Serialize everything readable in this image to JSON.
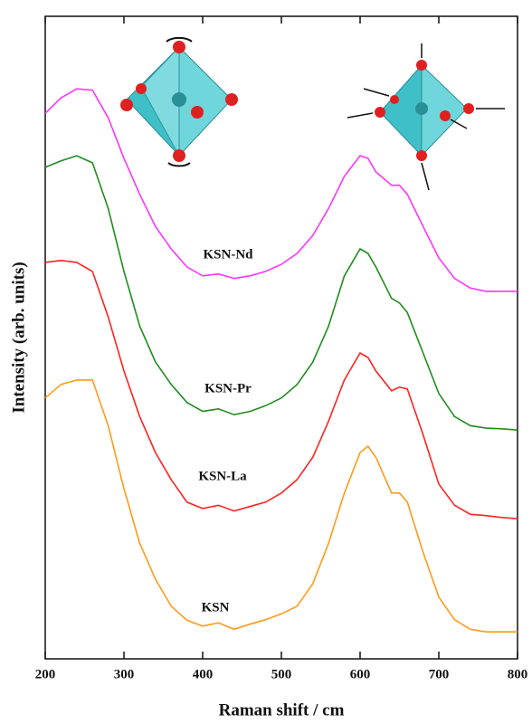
{
  "chart_data": {
    "type": "line",
    "xlabel": "Raman shift / cm",
    "ylabel": "Intensity (arb. units)",
    "xlim": [
      200,
      800
    ],
    "xticks": [
      200,
      300,
      400,
      500,
      600,
      700,
      800
    ],
    "ylim": [
      0,
      100
    ],
    "x": [
      200,
      220,
      240,
      260,
      280,
      300,
      320,
      340,
      360,
      380,
      400,
      420,
      440,
      460,
      480,
      500,
      520,
      540,
      560,
      580,
      600,
      610,
      620,
      640,
      650,
      660,
      680,
      700,
      720,
      740,
      760,
      780,
      800
    ],
    "series": [
      {
        "name": "KSN-Nd",
        "color": "#ff33ff",
        "values": [
          84.9,
          87.3,
          88.7,
          88.5,
          84.2,
          77.9,
          72.3,
          67.3,
          63.8,
          61.0,
          59.6,
          59.9,
          59.2,
          59.6,
          60.3,
          61.4,
          63.1,
          65.9,
          70.1,
          75.1,
          78.3,
          77.9,
          75.8,
          73.7,
          73.7,
          72.3,
          67.3,
          62.4,
          59.2,
          57.7,
          57.2,
          57.2,
          57.2
        ]
      },
      {
        "name": "KSN-Pr",
        "color": "#1f8c1f",
        "values": [
          76.5,
          77.5,
          78.3,
          77.2,
          70.1,
          60.3,
          51.8,
          46.2,
          42.7,
          39.9,
          38.5,
          38.9,
          38.0,
          38.5,
          39.4,
          40.6,
          42.7,
          46.2,
          51.8,
          59.6,
          63.8,
          63.1,
          61.0,
          56.1,
          55.4,
          53.9,
          47.6,
          41.3,
          37.7,
          36.3,
          35.9,
          35.8,
          35.6
        ]
      },
      {
        "name": "KSN-La",
        "color": "#ff2222",
        "values": [
          61.7,
          62.0,
          61.7,
          60.3,
          53.2,
          44.8,
          37.7,
          32.1,
          27.9,
          24.4,
          23.4,
          23.9,
          23.0,
          23.7,
          24.4,
          25.8,
          27.9,
          31.4,
          37.0,
          43.4,
          47.6,
          46.9,
          44.8,
          41.7,
          42.3,
          42.0,
          34.9,
          27.2,
          23.9,
          22.5,
          22.3,
          22.0,
          21.8
        ]
      },
      {
        "name": "KSN",
        "color": "#ff9a1a",
        "values": [
          40.6,
          42.7,
          43.4,
          43.4,
          36.3,
          26.5,
          18.0,
          12.4,
          8.2,
          6.0,
          5.1,
          5.6,
          4.6,
          5.4,
          6.1,
          7.0,
          8.2,
          11.7,
          18.0,
          25.8,
          32.1,
          33.1,
          31.4,
          25.8,
          25.8,
          24.4,
          16.6,
          9.6,
          6.1,
          4.6,
          4.2,
          4.2,
          4.2
        ]
      }
    ]
  }
}
